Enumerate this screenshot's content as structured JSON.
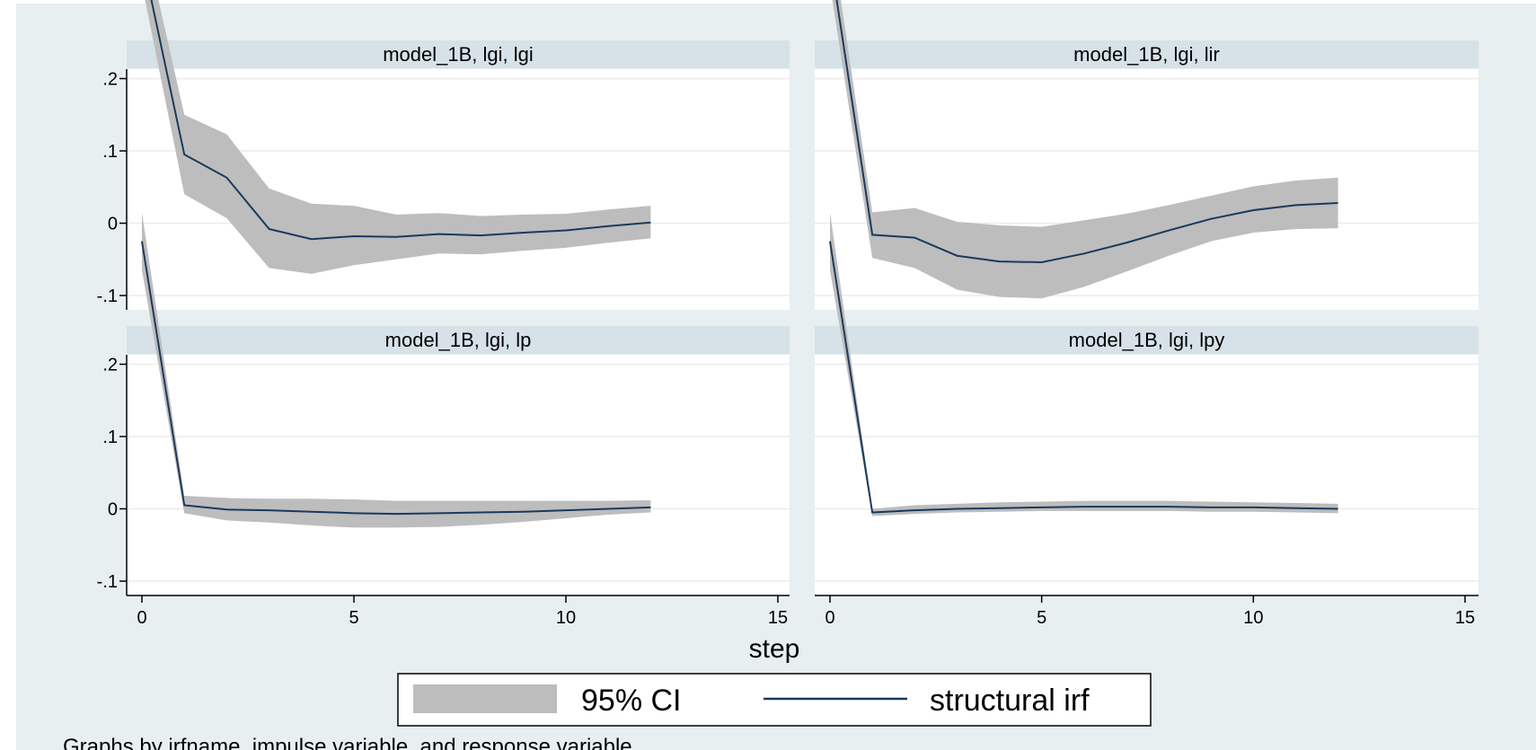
{
  "chart_data": {
    "type": "line",
    "title": "",
    "xlabel": "step",
    "ylabel": "",
    "xlim": [
      0,
      15
    ],
    "ylim": [
      -0.1,
      0.2
    ],
    "xticks": [
      "0",
      "5",
      "10",
      "15"
    ],
    "yticks": [
      "-.1",
      "0",
      ".1",
      ".2"
    ],
    "grid": true,
    "legend_position": "bottom",
    "legend": [
      "95% CI",
      "structural irf"
    ],
    "colors": {
      "background": "#e8eff1",
      "strip": "#d6e2e8",
      "ci": "#bdbdbd",
      "irf": "#1a3a5c",
      "grid": "#ececec"
    },
    "note": "Graphs by irfname, impulse variable, and response variable",
    "panels": [
      {
        "title": "model_1B, lgi, lgi",
        "x": [
          0,
          1,
          2,
          3,
          4,
          5,
          6,
          7,
          8,
          9,
          10,
          11,
          12
        ],
        "irf": [
          0.37,
          0.095,
          0.063,
          -0.008,
          -0.022,
          -0.018,
          -0.019,
          -0.015,
          -0.017,
          -0.013,
          -0.01,
          -0.004,
          0.001
        ],
        "lower": [
          0.33,
          0.04,
          0.007,
          -0.062,
          -0.07,
          -0.058,
          -0.05,
          -0.042,
          -0.043,
          -0.038,
          -0.034,
          -0.027,
          -0.021
        ],
        "upper": [
          0.41,
          0.15,
          0.123,
          0.048,
          0.027,
          0.024,
          0.012,
          0.014,
          0.01,
          0.012,
          0.013,
          0.019,
          0.024
        ]
      },
      {
        "title": "model_1B, lgi, lir",
        "x": [
          0,
          1,
          2,
          3,
          4,
          5,
          6,
          7,
          8,
          9,
          10,
          11,
          12
        ],
        "irf": [
          0.37,
          -0.016,
          -0.02,
          -0.045,
          -0.053,
          -0.054,
          -0.042,
          -0.027,
          -0.01,
          0.006,
          0.018,
          0.025,
          0.028
        ],
        "lower": [
          0.33,
          -0.048,
          -0.062,
          -0.092,
          -0.102,
          -0.104,
          -0.088,
          -0.067,
          -0.045,
          -0.025,
          -0.013,
          -0.008,
          -0.007
        ],
        "upper": [
          0.41,
          0.015,
          0.021,
          0.002,
          -0.003,
          -0.005,
          0.004,
          0.013,
          0.025,
          0.038,
          0.051,
          0.059,
          0.063
        ]
      },
      {
        "title": "model_1B, lgi, lp",
        "x": [
          0,
          1,
          2,
          3,
          4,
          5,
          6,
          7,
          8,
          9,
          10,
          11,
          12
        ],
        "irf": [
          0.37,
          0.005,
          -0.001,
          -0.002,
          -0.004,
          -0.006,
          -0.007,
          -0.006,
          -0.005,
          -0.004,
          -0.002,
          0.0,
          0.002
        ],
        "lower": [
          0.33,
          -0.006,
          -0.016,
          -0.019,
          -0.023,
          -0.026,
          -0.026,
          -0.025,
          -0.022,
          -0.018,
          -0.013,
          -0.008,
          -0.005
        ],
        "upper": [
          0.41,
          0.018,
          0.015,
          0.014,
          0.014,
          0.013,
          0.011,
          0.011,
          0.011,
          0.011,
          0.011,
          0.011,
          0.012
        ]
      },
      {
        "title": "model_1B, lgi, lpy",
        "x": [
          0,
          1,
          2,
          3,
          4,
          5,
          6,
          7,
          8,
          9,
          10,
          11,
          12
        ],
        "irf": [
          0.37,
          -0.005,
          -0.002,
          0.0,
          0.001,
          0.002,
          0.003,
          0.003,
          0.003,
          0.002,
          0.002,
          0.001,
          0.0
        ],
        "lower": [
          0.33,
          -0.01,
          -0.007,
          -0.005,
          -0.004,
          -0.003,
          -0.003,
          -0.003,
          -0.003,
          -0.004,
          -0.004,
          -0.005,
          -0.006
        ],
        "upper": [
          0.41,
          0.0,
          0.005,
          0.007,
          0.009,
          0.01,
          0.011,
          0.011,
          0.011,
          0.01,
          0.009,
          0.008,
          0.007
        ]
      }
    ]
  }
}
